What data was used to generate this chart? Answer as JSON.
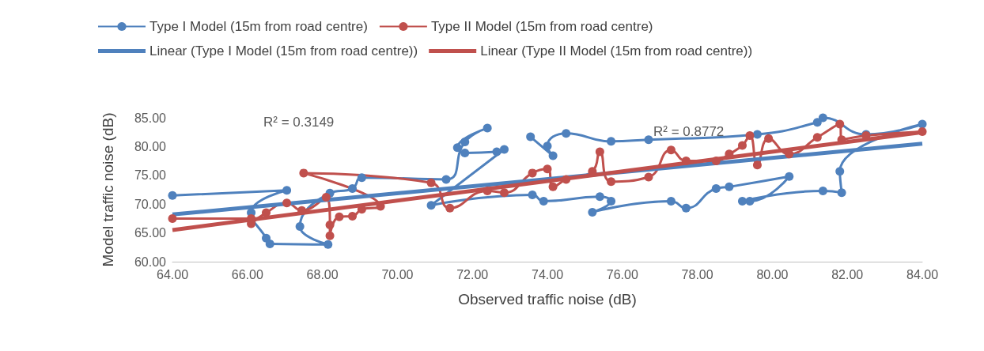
{
  "chart_data": {
    "type": "line",
    "xlabel": "Observed traffic noise (dB)",
    "ylabel": "Model traffic noise (dB)",
    "xlim": [
      64,
      84
    ],
    "ylim": [
      60,
      85
    ],
    "xticks": [
      {
        "value": 64,
        "label": "64.00"
      },
      {
        "value": 66,
        "label": "66.00"
      },
      {
        "value": 68,
        "label": "68.00"
      },
      {
        "value": 70,
        "label": "70.00"
      },
      {
        "value": 72,
        "label": "72.00"
      },
      {
        "value": 74,
        "label": "74.00"
      },
      {
        "value": 76,
        "label": "76.00"
      },
      {
        "value": 78,
        "label": "78.00"
      },
      {
        "value": 80,
        "label": "80.00"
      },
      {
        "value": 82,
        "label": "82.00"
      },
      {
        "value": 84,
        "label": "84.00"
      }
    ],
    "yticks": [
      {
        "value": 60,
        "label": "60.00"
      },
      {
        "value": 65,
        "label": "65.00"
      },
      {
        "value": 70,
        "label": "70.00"
      },
      {
        "value": 75,
        "label": "75.00"
      },
      {
        "value": 80,
        "label": "80.00"
      },
      {
        "value": 85,
        "label": "85.00"
      }
    ],
    "legend": "top",
    "grid": false,
    "marker": "circle",
    "annotations": [
      "R² = 0.3149",
      "R² = 0.8772"
    ],
    "series": [
      {
        "name": "Type I Model (15m from road centre)",
        "color": "#4f81bd",
        "x": [
          64.0,
          67.05,
          66.1,
          66.5,
          66.6,
          68.15,
          67.4,
          68.2,
          68.8,
          69.05,
          71.3,
          71.8,
          72.4,
          71.6,
          71.8,
          72.65,
          72.85,
          70.9,
          73.6,
          73.9,
          75.4,
          75.7,
          75.2,
          77.3,
          77.7,
          78.5,
          78.85,
          80.45,
          79.4,
          79.2,
          81.35,
          81.85,
          81.8,
          84.0,
          82.5,
          81.35,
          81.2,
          79.6,
          76.7,
          75.7,
          74.5,
          74.0,
          74.15,
          73.55
        ],
        "values": [
          71.5,
          72.4,
          68.5,
          64.1,
          63.1,
          63.0,
          66.1,
          71.9,
          72.7,
          74.6,
          74.3,
          80.8,
          83.2,
          79.8,
          78.9,
          79.1,
          79.5,
          69.8,
          71.6,
          70.5,
          71.3,
          70.5,
          68.6,
          70.5,
          69.3,
          72.7,
          73.0,
          74.8,
          70.5,
          70.5,
          72.3,
          72.0,
          75.7,
          83.9,
          82.1,
          85.0,
          84.2,
          82.1,
          81.2,
          80.9,
          82.3,
          80.1,
          78.4,
          81.7
        ]
      },
      {
        "name": "Type II Model (15m from road centre)",
        "color": "#c0504d",
        "x": [
          64.0,
          66.1,
          66.1,
          66.5,
          67.05,
          67.45,
          68.1,
          68.2,
          68.2,
          68.45,
          68.8,
          69.05,
          69.55,
          67.5,
          70.9,
          71.4,
          72.4,
          72.85,
          73.6,
          74.0,
          74.15,
          74.5,
          75.2,
          75.4,
          75.7,
          76.7,
          77.3,
          77.7,
          78.5,
          78.85,
          79.2,
          79.4,
          79.6,
          79.9,
          80.45,
          81.2,
          81.8,
          81.85,
          82.5,
          84.0
        ],
        "values": [
          67.5,
          67.5,
          66.6,
          68.5,
          70.2,
          68.9,
          71.2,
          66.4,
          64.5,
          67.8,
          67.9,
          69.1,
          69.6,
          75.4,
          73.7,
          69.3,
          72.3,
          72.0,
          75.4,
          76.1,
          73.0,
          74.3,
          75.7,
          79.1,
          73.9,
          74.7,
          79.4,
          77.5,
          77.5,
          78.7,
          80.2,
          81.9,
          76.8,
          81.4,
          78.7,
          81.6,
          83.9,
          81.2,
          81.9,
          82.6
        ]
      },
      {
        "name": "Linear (Type I Model (15m from road centre))",
        "color": "#4f81bd",
        "marker": "none",
        "x": [
          64,
          84
        ],
        "values": [
          68.2,
          80.5
        ]
      },
      {
        "name": "Linear (Type II Model (15m from road centre))",
        "color": "#c0504d",
        "marker": "none",
        "x": [
          64,
          84
        ],
        "values": [
          65.5,
          82.5
        ]
      }
    ]
  }
}
